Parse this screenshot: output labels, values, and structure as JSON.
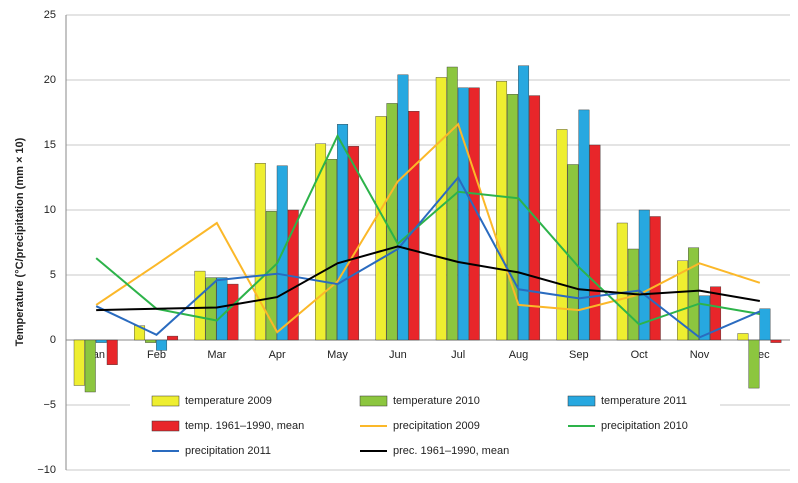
{
  "chart_data": {
    "type": "bar",
    "y_label": "Temperature (°C/precipitation (mm × 10)",
    "categories": [
      "Jan",
      "Feb",
      "Mar",
      "Apr",
      "May",
      "Jun",
      "Jul",
      "Aug",
      "Sep",
      "Oct",
      "Nov",
      "Dec"
    ],
    "series": [
      {
        "name": "temperature 2009",
        "type": "bar",
        "color": "#eeee30",
        "values": [
          -3.5,
          1.1,
          5.3,
          13.6,
          15.1,
          17.2,
          20.2,
          19.9,
          16.2,
          9.0,
          6.1,
          0.5
        ]
      },
      {
        "name": "temperature 2010",
        "type": "bar",
        "color": "#8cc63f",
        "values": [
          -4.0,
          -0.2,
          4.8,
          9.9,
          13.9,
          18.2,
          21.0,
          18.9,
          13.5,
          7.0,
          7.1,
          -3.7
        ]
      },
      {
        "name": "temperature 2011",
        "type": "bar",
        "color": "#27a8e0",
        "values": [
          -0.2,
          -0.8,
          4.8,
          13.4,
          16.6,
          20.4,
          19.4,
          21.1,
          17.7,
          10.0,
          3.4,
          2.4
        ]
      },
      {
        "name": "temp. 1961–1990, mean",
        "type": "bar",
        "color": "#e8262a",
        "values": [
          -1.9,
          0.3,
          4.3,
          10.0,
          14.9,
          17.6,
          19.4,
          18.8,
          15.0,
          9.5,
          4.1,
          -0.2
        ]
      },
      {
        "name": "precipitation 2009",
        "type": "line",
        "color": "#fbb829",
        "values": [
          2.7,
          5.8,
          9.0,
          0.6,
          4.5,
          12.2,
          16.6,
          2.7,
          2.3,
          3.5,
          5.9,
          4.4
        ]
      },
      {
        "name": "precipitation 2010",
        "type": "line",
        "color": "#2db34a",
        "values": [
          6.3,
          2.4,
          1.5,
          5.9,
          15.7,
          7.4,
          11.4,
          10.9,
          5.6,
          1.2,
          2.8,
          2.0
        ]
      },
      {
        "name": "precipitation 2011",
        "type": "line",
        "color": "#2a6bbf",
        "values": [
          2.6,
          0.4,
          4.6,
          5.1,
          4.3,
          7.0,
          12.5,
          3.9,
          3.2,
          3.8,
          0.2,
          2.2
        ]
      },
      {
        "name": "prec. 1961–1990, mean",
        "type": "line",
        "color": "#000000",
        "values": [
          2.3,
          2.4,
          2.5,
          3.3,
          5.9,
          7.2,
          6.0,
          5.2,
          3.9,
          3.5,
          3.8,
          3.0
        ]
      }
    ],
    "ylim": [
      -10,
      25
    ],
    "yticks": [
      {
        "value": -10,
        "label": "−10"
      },
      {
        "value": -5,
        "label": "−5"
      },
      0,
      5,
      10,
      15,
      20,
      25
    ],
    "grid": true
  }
}
